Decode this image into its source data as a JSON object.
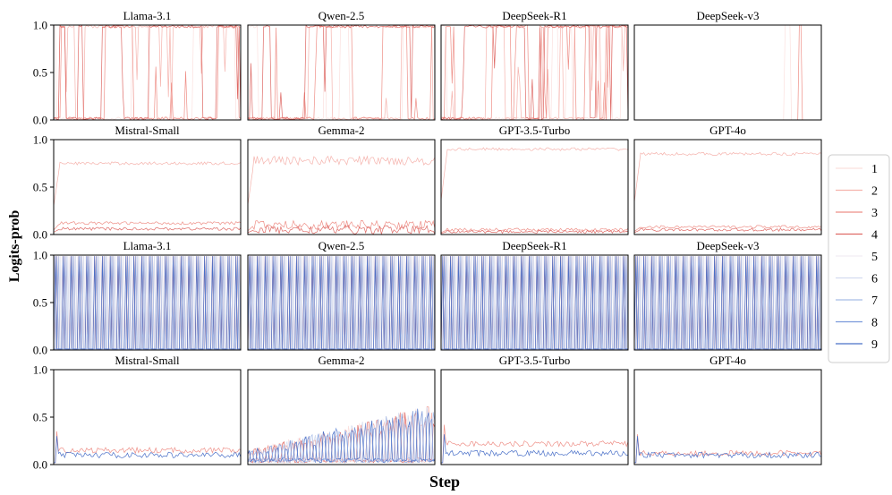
{
  "chart_data": {
    "type": "line",
    "ylabel": "Logits-prob",
    "xlabel": "Step",
    "ylim": [
      0,
      1
    ],
    "yticks": [
      "0.0",
      "0.5",
      "1.0"
    ],
    "legend": {
      "placement": "right",
      "entries": [
        "1",
        "2",
        "3",
        "4",
        "5",
        "6",
        "7",
        "8",
        "9"
      ],
      "colors": [
        "#fbe0de",
        "#f5b3ad",
        "#ee8f87",
        "#de6a66",
        "#f2eef4",
        "#d3dcef",
        "#a8bde8",
        "#7c9bdc",
        "#4a70c8"
      ]
    },
    "rows": [
      {
        "panels": [
          {
            "title": "Llama-3.1",
            "pattern": "jump"
          },
          {
            "title": "Qwen-2.5",
            "pattern": "jump"
          },
          {
            "title": "DeepSeek-R1",
            "pattern": "jump-late"
          },
          {
            "title": "DeepSeek-v3",
            "pattern": "sparse"
          }
        ]
      },
      {
        "panels": [
          {
            "title": "Mistral-Small",
            "pattern": "stable",
            "series": [
              {
                "name": "2",
                "mean": 0.75
              },
              {
                "name": "3",
                "mean": 0.12
              },
              {
                "name": "4",
                "mean": 0.06
              }
            ]
          },
          {
            "title": "Gemma-2",
            "pattern": "stable-noisy",
            "series": [
              {
                "name": "2",
                "mean": 0.78
              },
              {
                "name": "3",
                "mean": 0.1
              },
              {
                "name": "4",
                "mean": 0.05
              }
            ]
          },
          {
            "title": "GPT-3.5-Turbo",
            "pattern": "stable",
            "series": [
              {
                "name": "2",
                "mean": 0.9
              },
              {
                "name": "3",
                "mean": 0.05
              },
              {
                "name": "4",
                "mean": 0.03
              }
            ]
          },
          {
            "title": "GPT-4o",
            "pattern": "stable",
            "series": [
              {
                "name": "2",
                "mean": 0.85
              },
              {
                "name": "3",
                "mean": 0.08
              },
              {
                "name": "4",
                "mean": 0.05
              }
            ]
          }
        ]
      },
      {
        "panels": [
          {
            "title": "Llama-3.1",
            "pattern": "periodic"
          },
          {
            "title": "Qwen-2.5",
            "pattern": "periodic"
          },
          {
            "title": "DeepSeek-R1",
            "pattern": "periodic"
          },
          {
            "title": "DeepSeek-v3",
            "pattern": "periodic"
          }
        ]
      },
      {
        "panels": [
          {
            "title": "Mistral-Small",
            "pattern": "low",
            "series": [
              {
                "name": "3",
                "mean": 0.15
              },
              {
                "name": "9",
                "mean": 0.1
              }
            ]
          },
          {
            "title": "Gemma-2",
            "pattern": "growing"
          },
          {
            "title": "GPT-3.5-Turbo",
            "pattern": "low",
            "series": [
              {
                "name": "3",
                "mean": 0.22
              },
              {
                "name": "9",
                "mean": 0.12
              }
            ]
          },
          {
            "title": "GPT-4o",
            "pattern": "low",
            "series": [
              {
                "name": "3",
                "mean": 0.12
              },
              {
                "name": "9",
                "mean": 0.1
              }
            ]
          }
        ]
      }
    ]
  }
}
